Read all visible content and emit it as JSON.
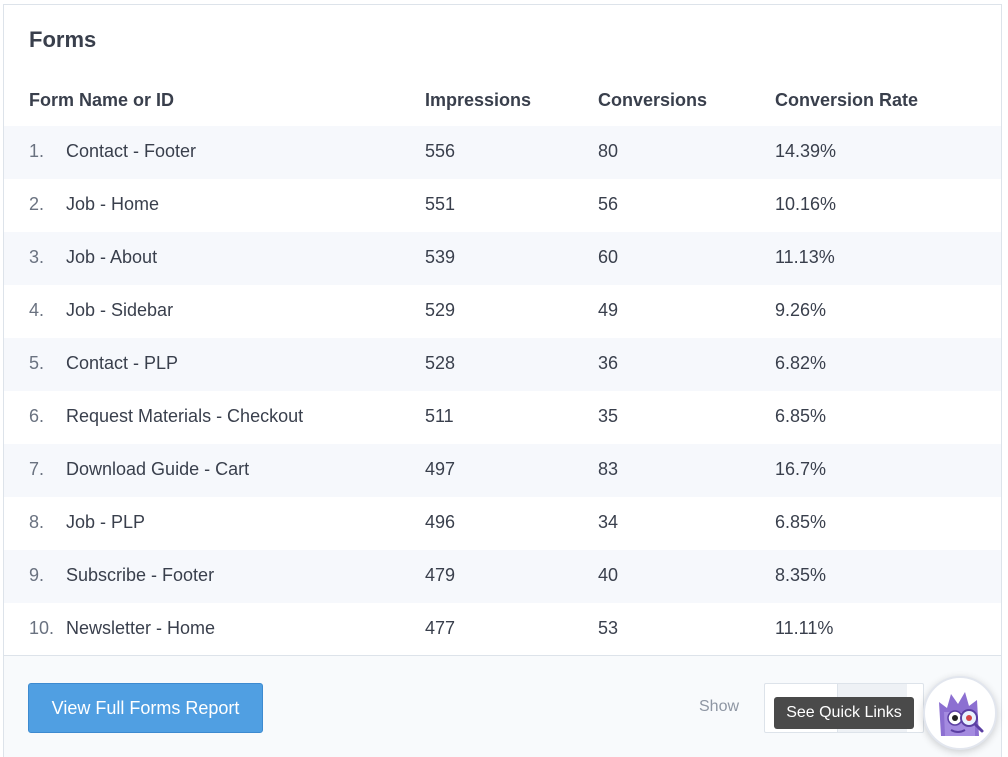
{
  "panel": {
    "title": "Forms"
  },
  "table": {
    "headers": {
      "name": "Form Name or ID",
      "impressions": "Impressions",
      "conversions": "Conversions",
      "rate": "Conversion Rate"
    },
    "rows": [
      {
        "num": "1.",
        "name": "Contact - Footer",
        "impressions": "556",
        "conversions": "80",
        "rate": "14.39%"
      },
      {
        "num": "2.",
        "name": "Job - Home",
        "impressions": "551",
        "conversions": "56",
        "rate": "10.16%"
      },
      {
        "num": "3.",
        "name": "Job - About",
        "impressions": "539",
        "conversions": "60",
        "rate": "11.13%"
      },
      {
        "num": "4.",
        "name": "Job - Sidebar",
        "impressions": "529",
        "conversions": "49",
        "rate": "9.26%"
      },
      {
        "num": "5.",
        "name": "Contact - PLP",
        "impressions": "528",
        "conversions": "36",
        "rate": "6.82%"
      },
      {
        "num": "6.",
        "name": "Request Materials - Checkout",
        "impressions": "511",
        "conversions": "35",
        "rate": "6.85%"
      },
      {
        "num": "7.",
        "name": "Download Guide - Cart",
        "impressions": "497",
        "conversions": "83",
        "rate": "16.7%"
      },
      {
        "num": "8.",
        "name": "Job - PLP",
        "impressions": "496",
        "conversions": "34",
        "rate": "6.85%"
      },
      {
        "num": "9.",
        "name": "Subscribe - Footer",
        "impressions": "479",
        "conversions": "40",
        "rate": "8.35%"
      },
      {
        "num": "10.",
        "name": "Newsletter - Home",
        "impressions": "477",
        "conversions": "53",
        "rate": "11.11%"
      }
    ]
  },
  "footer": {
    "report_button": "View Full Forms Report",
    "show_label": "Show",
    "quick_links_tooltip": "See Quick Links"
  },
  "colors": {
    "accent": "#509fe2",
    "row_alt": "#f6f8fc",
    "text": "#393f4c",
    "mascot": "#8c6fd1"
  },
  "icons": {
    "assistant": "monster-mascot-icon"
  }
}
